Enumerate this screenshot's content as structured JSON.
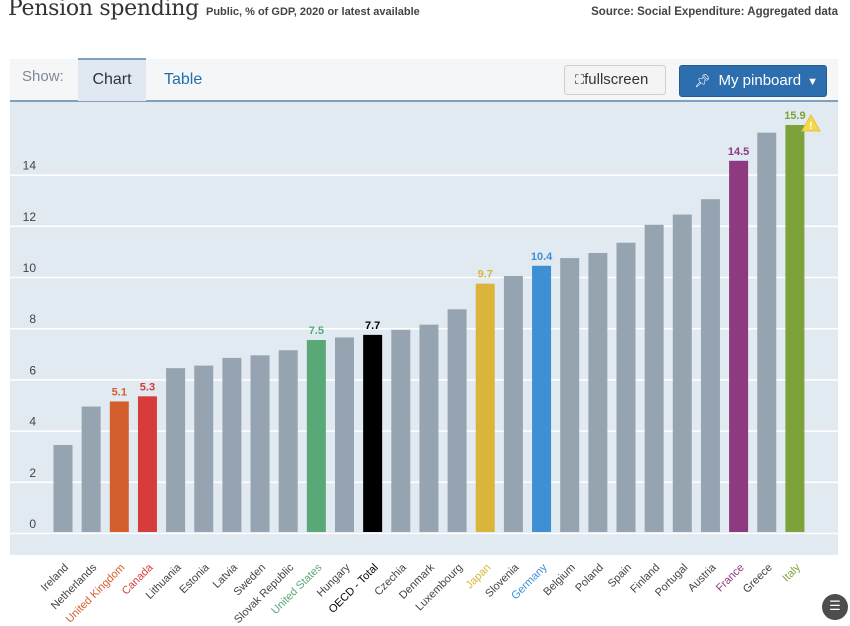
{
  "header": {
    "title": "Pension spending",
    "subtitle": "Public, % of GDP, 2020 or latest available",
    "source": "Source: Social Expenditure: Aggregated data"
  },
  "toolbar": {
    "show_label": "Show:",
    "tabs": [
      {
        "label": "Chart",
        "active": true
      },
      {
        "label": "Table",
        "active": false
      }
    ],
    "fullscreen_label": "fullscreen",
    "pinboard_label": "My pinboard",
    "fullscreen_icon": "expand-arrows",
    "pin_icon": "pushpin",
    "caret_icon": "caret-down"
  },
  "colors": {
    "default_bar": "#95a4b0",
    "plot_background": "#e1e9f1",
    "gridline": "#ffffff"
  },
  "chart_data": {
    "type": "bar",
    "title": "Pension spending",
    "subtitle": "Public, % of GDP, 2020 or latest available",
    "xlabel": "",
    "ylabel": "",
    "ylim": [
      0,
      16
    ],
    "yticks": [
      0,
      2,
      4,
      6,
      8,
      10,
      12,
      14
    ],
    "grid": true,
    "legend": "none",
    "categories": [
      "Ireland",
      "Netherlands",
      "United Kingdom",
      "Canada",
      "Lithuania",
      "Estonia",
      "Latvia",
      "Sweden",
      "Slovak Republic",
      "United States",
      "Hungary",
      "OECD - Total",
      "Czechia",
      "Denmark",
      "Luxembourg",
      "Japan",
      "Slovenia",
      "Germany",
      "Belgium",
      "Poland",
      "Spain",
      "Finland",
      "Portugal",
      "Austria",
      "France",
      "Greece",
      "Italy"
    ],
    "values": [
      3.4,
      4.9,
      5.1,
      5.3,
      6.4,
      6.5,
      6.8,
      6.9,
      7.1,
      7.5,
      7.6,
      7.7,
      7.9,
      8.1,
      8.7,
      9.7,
      10.0,
      10.4,
      10.7,
      10.9,
      11.3,
      12.0,
      12.4,
      13.0,
      14.5,
      15.6,
      15.9
    ],
    "highlights": {
      "United Kingdom": {
        "color": "#d35f2f",
        "label": "5.1"
      },
      "Canada": {
        "color": "#d63c3a",
        "label": "5.3"
      },
      "United States": {
        "color": "#58a878",
        "label": "7.5"
      },
      "OECD - Total": {
        "color": "#000000",
        "label": "7.7"
      },
      "Japan": {
        "color": "#dbb53b",
        "label": "9.7"
      },
      "Germany": {
        "color": "#3f8fd4",
        "label": "10.4"
      },
      "France": {
        "color": "#8e3a80",
        "label": "14.5"
      },
      "Italy": {
        "color": "#7ea23a",
        "label": "15.9",
        "warning": true
      }
    }
  }
}
